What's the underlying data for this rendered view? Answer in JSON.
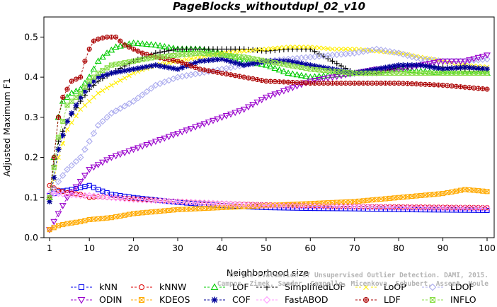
{
  "chart_data": {
    "type": "line",
    "title": "PageBlocks_withoutdupl_02_v10",
    "xlabel": "Neighborhood size",
    "ylabel": "Adjusted Maximum F1",
    "xlim": [
      0,
      100
    ],
    "ylim": [
      0,
      0.55
    ],
    "xticks": [
      1,
      10,
      20,
      30,
      40,
      50,
      60,
      70,
      80,
      90,
      100
    ],
    "yticks": [
      0.0,
      0.1,
      0.2,
      0.3,
      0.4,
      0.5
    ],
    "ytick_labels": [
      "0.0",
      "0.1",
      "0.2",
      "0.3",
      "0.4",
      "0.5"
    ],
    "grid": false,
    "legend_position": "bottom",
    "credit": "Campos, Zimek, Sander, Campello, Micenkova, Schubert, Assent, Houle: On the Evaluation of Unsupervised Outlier Detection. DAMI, 2015.",
    "series": [
      {
        "name": "kNN",
        "color": "#0000ee",
        "marker": "square",
        "dash": true,
        "points": [
          [
            1,
            0.105
          ],
          [
            3,
            0.115
          ],
          [
            5,
            0.118
          ],
          [
            8,
            0.125
          ],
          [
            10,
            0.13
          ],
          [
            12,
            0.12
          ],
          [
            15,
            0.108
          ],
          [
            20,
            0.1
          ],
          [
            30,
            0.088
          ],
          [
            40,
            0.08
          ],
          [
            50,
            0.075
          ],
          [
            60,
            0.073
          ],
          [
            70,
            0.072
          ],
          [
            80,
            0.07
          ],
          [
            90,
            0.069
          ],
          [
            100,
            0.068
          ]
        ]
      },
      {
        "name": "kNNW",
        "color": "#dd0000",
        "marker": "circle",
        "dash": true,
        "points": [
          [
            1,
            0.13
          ],
          [
            3,
            0.118
          ],
          [
            5,
            0.112
          ],
          [
            8,
            0.108
          ],
          [
            10,
            0.1
          ],
          [
            12,
            0.102
          ],
          [
            15,
            0.1
          ],
          [
            20,
            0.097
          ],
          [
            30,
            0.09
          ],
          [
            40,
            0.085
          ],
          [
            50,
            0.082
          ],
          [
            60,
            0.08
          ],
          [
            70,
            0.078
          ],
          [
            80,
            0.077
          ],
          [
            90,
            0.076
          ],
          [
            100,
            0.075
          ]
        ]
      },
      {
        "name": "LOF",
        "color": "#00cc00",
        "marker": "triangle-up",
        "dash": true,
        "points": [
          [
            1,
            0.1
          ],
          [
            2,
            0.2
          ],
          [
            3,
            0.3
          ],
          [
            4,
            0.34
          ],
          [
            6,
            0.36
          ],
          [
            8,
            0.37
          ],
          [
            10,
            0.4
          ],
          [
            12,
            0.44
          ],
          [
            14,
            0.46
          ],
          [
            16,
            0.475
          ],
          [
            18,
            0.48
          ],
          [
            20,
            0.485
          ],
          [
            25,
            0.48
          ],
          [
            30,
            0.47
          ],
          [
            35,
            0.47
          ],
          [
            40,
            0.46
          ],
          [
            45,
            0.44
          ],
          [
            50,
            0.43
          ],
          [
            55,
            0.41
          ],
          [
            60,
            0.4
          ],
          [
            70,
            0.41
          ],
          [
            80,
            0.42
          ],
          [
            90,
            0.41
          ],
          [
            100,
            0.41
          ]
        ]
      },
      {
        "name": "SimplifiedLOF",
        "color": "#000000",
        "marker": "plus",
        "dash": true,
        "points": [
          [
            1,
            0.1
          ],
          [
            2,
            0.18
          ],
          [
            3,
            0.24
          ],
          [
            5,
            0.29
          ],
          [
            8,
            0.34
          ],
          [
            10,
            0.37
          ],
          [
            12,
            0.39
          ],
          [
            15,
            0.41
          ],
          [
            20,
            0.44
          ],
          [
            25,
            0.46
          ],
          [
            30,
            0.47
          ],
          [
            35,
            0.47
          ],
          [
            40,
            0.47
          ],
          [
            45,
            0.47
          ],
          [
            50,
            0.465
          ],
          [
            55,
            0.47
          ],
          [
            60,
            0.47
          ],
          [
            65,
            0.44
          ],
          [
            70,
            0.41
          ],
          [
            75,
            0.41
          ],
          [
            80,
            0.425
          ],
          [
            85,
            0.43
          ],
          [
            90,
            0.425
          ],
          [
            95,
            0.42
          ],
          [
            100,
            0.42
          ]
        ]
      },
      {
        "name": "LoOP",
        "color": "#ffee00",
        "marker": "x",
        "dash": true,
        "points": [
          [
            1,
            0.09
          ],
          [
            3,
            0.2
          ],
          [
            5,
            0.27
          ],
          [
            8,
            0.32
          ],
          [
            10,
            0.34
          ],
          [
            12,
            0.36
          ],
          [
            15,
            0.38
          ],
          [
            20,
            0.41
          ],
          [
            25,
            0.43
          ],
          [
            30,
            0.44
          ],
          [
            35,
            0.45
          ],
          [
            40,
            0.46
          ],
          [
            45,
            0.465
          ],
          [
            50,
            0.47
          ],
          [
            55,
            0.475
          ],
          [
            60,
            0.475
          ],
          [
            65,
            0.47
          ],
          [
            70,
            0.47
          ],
          [
            75,
            0.465
          ],
          [
            80,
            0.46
          ],
          [
            85,
            0.45
          ],
          [
            90,
            0.44
          ],
          [
            95,
            0.43
          ],
          [
            100,
            0.425
          ]
        ]
      },
      {
        "name": "LDOF",
        "color": "#aaaaee",
        "marker": "diamond",
        "dash": true,
        "points": [
          [
            1,
            0.1
          ],
          [
            3,
            0.14
          ],
          [
            5,
            0.17
          ],
          [
            8,
            0.2
          ],
          [
            10,
            0.24
          ],
          [
            12,
            0.28
          ],
          [
            15,
            0.31
          ],
          [
            20,
            0.34
          ],
          [
            25,
            0.38
          ],
          [
            30,
            0.4
          ],
          [
            35,
            0.41
          ],
          [
            40,
            0.42
          ],
          [
            50,
            0.44
          ],
          [
            60,
            0.45
          ],
          [
            70,
            0.46
          ],
          [
            75,
            0.47
          ],
          [
            80,
            0.46
          ],
          [
            85,
            0.445
          ],
          [
            90,
            0.44
          ],
          [
            95,
            0.44
          ],
          [
            100,
            0.445
          ]
        ]
      },
      {
        "name": "ODIN",
        "color": "#9900cc",
        "marker": "triangle-down",
        "dash": true,
        "points": [
          [
            1,
            0.02
          ],
          [
            3,
            0.06
          ],
          [
            5,
            0.1
          ],
          [
            8,
            0.14
          ],
          [
            10,
            0.17
          ],
          [
            15,
            0.2
          ],
          [
            20,
            0.22
          ],
          [
            25,
            0.24
          ],
          [
            30,
            0.26
          ],
          [
            35,
            0.28
          ],
          [
            40,
            0.3
          ],
          [
            45,
            0.32
          ],
          [
            50,
            0.35
          ],
          [
            55,
            0.37
          ],
          [
            60,
            0.39
          ],
          [
            65,
            0.4
          ],
          [
            70,
            0.41
          ],
          [
            75,
            0.42
          ],
          [
            80,
            0.42
          ],
          [
            85,
            0.43
          ],
          [
            90,
            0.44
          ],
          [
            95,
            0.44
          ],
          [
            100,
            0.455
          ]
        ]
      },
      {
        "name": "KDEOS",
        "color": "#ffaa00",
        "marker": "square-x",
        "dash": true,
        "points": [
          [
            1,
            0.02
          ],
          [
            3,
            0.03
          ],
          [
            5,
            0.035
          ],
          [
            8,
            0.04
          ],
          [
            10,
            0.045
          ],
          [
            15,
            0.05
          ],
          [
            20,
            0.06
          ],
          [
            25,
            0.065
          ],
          [
            30,
            0.07
          ],
          [
            40,
            0.075
          ],
          [
            50,
            0.08
          ],
          [
            60,
            0.085
          ],
          [
            70,
            0.09
          ],
          [
            80,
            0.1
          ],
          [
            90,
            0.11
          ],
          [
            95,
            0.12
          ],
          [
            100,
            0.115
          ]
        ]
      },
      {
        "name": "COF",
        "color": "#000099",
        "marker": "star",
        "dash": true,
        "points": [
          [
            1,
            0.09
          ],
          [
            2,
            0.15
          ],
          [
            3,
            0.22
          ],
          [
            5,
            0.29
          ],
          [
            8,
            0.35
          ],
          [
            10,
            0.38
          ],
          [
            12,
            0.4
          ],
          [
            15,
            0.41
          ],
          [
            20,
            0.42
          ],
          [
            25,
            0.43
          ],
          [
            30,
            0.42
          ],
          [
            35,
            0.44
          ],
          [
            40,
            0.445
          ],
          [
            45,
            0.43
          ],
          [
            50,
            0.44
          ],
          [
            55,
            0.44
          ],
          [
            60,
            0.43
          ],
          [
            65,
            0.42
          ],
          [
            70,
            0.41
          ],
          [
            75,
            0.42
          ],
          [
            80,
            0.43
          ],
          [
            85,
            0.43
          ],
          [
            90,
            0.42
          ],
          [
            95,
            0.425
          ],
          [
            100,
            0.42
          ]
        ]
      },
      {
        "name": "FastABOD",
        "color": "#ff99ff",
        "marker": "diamond",
        "dash": true,
        "points": [
          [
            1,
            0.11
          ],
          [
            3,
            0.11
          ],
          [
            5,
            0.108
          ],
          [
            8,
            0.105
          ],
          [
            10,
            0.105
          ],
          [
            15,
            0.1
          ],
          [
            20,
            0.095
          ],
          [
            30,
            0.09
          ],
          [
            40,
            0.085
          ],
          [
            50,
            0.08
          ],
          [
            60,
            0.078
          ],
          [
            70,
            0.077
          ],
          [
            80,
            0.075
          ],
          [
            90,
            0.074
          ],
          [
            100,
            0.073
          ]
        ]
      },
      {
        "name": "LDF",
        "color": "#aa0000",
        "marker": "circle-plus",
        "dash": true,
        "points": [
          [
            1,
            0.1
          ],
          [
            2,
            0.2
          ],
          [
            3,
            0.3
          ],
          [
            4,
            0.35
          ],
          [
            5,
            0.37
          ],
          [
            6,
            0.39
          ],
          [
            8,
            0.4
          ],
          [
            9,
            0.44
          ],
          [
            10,
            0.47
          ],
          [
            11,
            0.49
          ],
          [
            12,
            0.495
          ],
          [
            14,
            0.5
          ],
          [
            16,
            0.5
          ],
          [
            17,
            0.49
          ],
          [
            18,
            0.48
          ],
          [
            20,
            0.47
          ],
          [
            22,
            0.46
          ],
          [
            25,
            0.45
          ],
          [
            30,
            0.44
          ],
          [
            35,
            0.42
          ],
          [
            40,
            0.41
          ],
          [
            45,
            0.4
          ],
          [
            50,
            0.39
          ],
          [
            60,
            0.385
          ],
          [
            70,
            0.385
          ],
          [
            80,
            0.385
          ],
          [
            90,
            0.38
          ],
          [
            100,
            0.37
          ]
        ]
      },
      {
        "name": "INFLO",
        "color": "#88dd44",
        "marker": "square-x",
        "dash": true,
        "points": [
          [
            1,
            0.1
          ],
          [
            3,
            0.25
          ],
          [
            5,
            0.33
          ],
          [
            8,
            0.36
          ],
          [
            10,
            0.39
          ],
          [
            12,
            0.41
          ],
          [
            15,
            0.43
          ],
          [
            20,
            0.44
          ],
          [
            25,
            0.45
          ],
          [
            30,
            0.455
          ],
          [
            35,
            0.46
          ],
          [
            40,
            0.455
          ],
          [
            45,
            0.45
          ],
          [
            50,
            0.44
          ],
          [
            55,
            0.43
          ],
          [
            60,
            0.42
          ],
          [
            70,
            0.41
          ],
          [
            80,
            0.41
          ],
          [
            90,
            0.41
          ],
          [
            100,
            0.41
          ]
        ]
      }
    ]
  }
}
